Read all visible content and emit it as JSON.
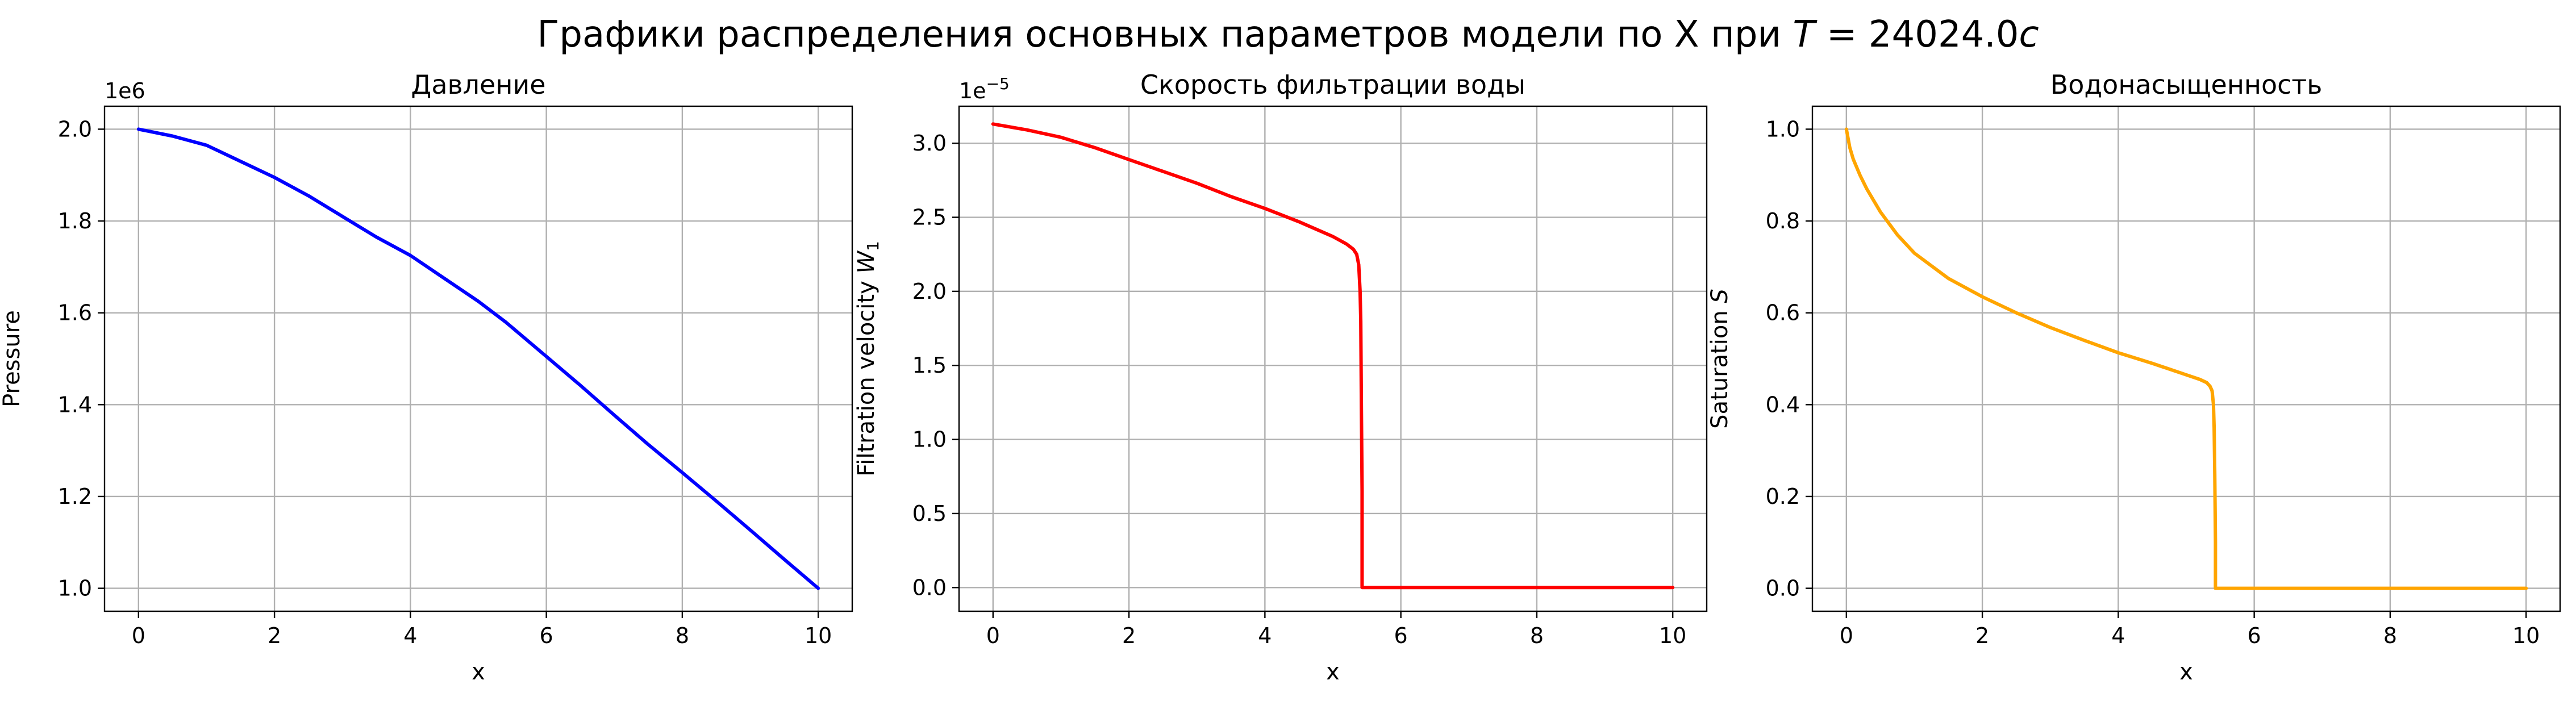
{
  "figure": {
    "suptitle_main": "Графики распределения основных параметров модели по X при ",
    "suptitle_var": "T",
    "suptitle_eq": " = 24024.0",
    "suptitle_unit": "c"
  },
  "chart_data": [
    {
      "type": "line",
      "title": "Давление",
      "xlabel": "x",
      "ylabel": "Pressure",
      "y_offset_text": "1e6",
      "xlim": [
        -0.5,
        10.5
      ],
      "ylim": [
        0.95,
        2.05
      ],
      "xticks": [
        0,
        2,
        4,
        6,
        8,
        10
      ],
      "xtick_labels": [
        "0",
        "2",
        "4",
        "6",
        "8",
        "10"
      ],
      "yticks": [
        1.0,
        1.2,
        1.4,
        1.6,
        1.8,
        2.0
      ],
      "ytick_labels": [
        "1.0",
        "1.2",
        "1.4",
        "1.6",
        "1.8",
        "2.0"
      ],
      "grid": true,
      "series": [
        {
          "color": "#0000ff",
          "x": [
            0,
            0.5,
            1,
            1.5,
            2,
            2.5,
            3,
            3.5,
            4,
            4.5,
            5,
            5.4,
            6,
            6.5,
            7,
            7.5,
            8,
            8.5,
            9,
            9.5,
            10
          ],
          "y": [
            2.0,
            1.985,
            1.965,
            1.93,
            1.895,
            1.855,
            1.81,
            1.765,
            1.725,
            1.675,
            1.625,
            1.58,
            1.505,
            1.442,
            1.377,
            1.313,
            1.252,
            1.19,
            1.127,
            1.063,
            1.0
          ]
        }
      ]
    },
    {
      "type": "line",
      "title": "Скорость фильтрации воды",
      "xlabel": "x",
      "ylabel_main": "Filtration velocity ",
      "ylabel_var": "W",
      "ylabel_sub": "1",
      "y_offset_prefix": "1e",
      "y_offset_exp": "−5",
      "xlim": [
        -0.5,
        10.5
      ],
      "ylim": [
        -0.16,
        3.25
      ],
      "xticks": [
        0,
        2,
        4,
        6,
        8,
        10
      ],
      "xtick_labels": [
        "0",
        "2",
        "4",
        "6",
        "8",
        "10"
      ],
      "yticks": [
        0.0,
        0.5,
        1.0,
        1.5,
        2.0,
        2.5,
        3.0
      ],
      "ytick_labels": [
        "0.0",
        "0.5",
        "1.0",
        "1.5",
        "2.0",
        "2.5",
        "3.0"
      ],
      "grid": true,
      "series": [
        {
          "color": "#ff0000",
          "x": [
            0,
            0.5,
            1,
            1.5,
            2,
            2.5,
            3,
            3.5,
            4,
            4.5,
            5,
            5.2,
            5.3,
            5.35,
            5.38,
            5.4,
            5.41,
            5.42,
            5.43,
            5.43,
            5.45,
            6,
            7,
            8,
            9,
            10
          ],
          "y": [
            3.13,
            3.09,
            3.04,
            2.97,
            2.89,
            2.81,
            2.73,
            2.64,
            2.56,
            2.47,
            2.37,
            2.32,
            2.285,
            2.25,
            2.18,
            2.0,
            1.8,
            1.2,
            0.65,
            0.0,
            0.0,
            0.0,
            0.0,
            0.0,
            0.0,
            0.0
          ]
        }
      ]
    },
    {
      "type": "line",
      "title": "Водонасыщенность",
      "xlabel": "x",
      "ylabel_main": "Saturation ",
      "ylabel_var": "S",
      "xlim": [
        -0.5,
        10.5
      ],
      "ylim": [
        -0.05,
        1.05
      ],
      "xticks": [
        0,
        2,
        4,
        6,
        8,
        10
      ],
      "xtick_labels": [
        "0",
        "2",
        "4",
        "6",
        "8",
        "10"
      ],
      "yticks": [
        0.0,
        0.2,
        0.4,
        0.6,
        0.8,
        1.0
      ],
      "ytick_labels": [
        "0.0",
        "0.2",
        "0.4",
        "0.6",
        "0.8",
        "1.0"
      ],
      "grid": true,
      "series": [
        {
          "color": "#ffa500",
          "x": [
            0,
            0.05,
            0.1,
            0.2,
            0.3,
            0.5,
            0.75,
            1,
            1.5,
            2,
            2.5,
            3,
            3.5,
            4,
            4.5,
            5,
            5.2,
            5.3,
            5.35,
            5.38,
            5.4,
            5.41,
            5.42,
            5.43,
            5.43,
            5.5,
            6,
            7,
            8,
            9,
            10
          ],
          "y": [
            1.0,
            0.96,
            0.935,
            0.9,
            0.87,
            0.82,
            0.77,
            0.73,
            0.675,
            0.635,
            0.6,
            0.568,
            0.54,
            0.513,
            0.49,
            0.465,
            0.455,
            0.448,
            0.44,
            0.43,
            0.4,
            0.35,
            0.25,
            0.1,
            0.0,
            0.0,
            0.0,
            0.0,
            0.0,
            0.0,
            0.0
          ]
        }
      ]
    }
  ]
}
